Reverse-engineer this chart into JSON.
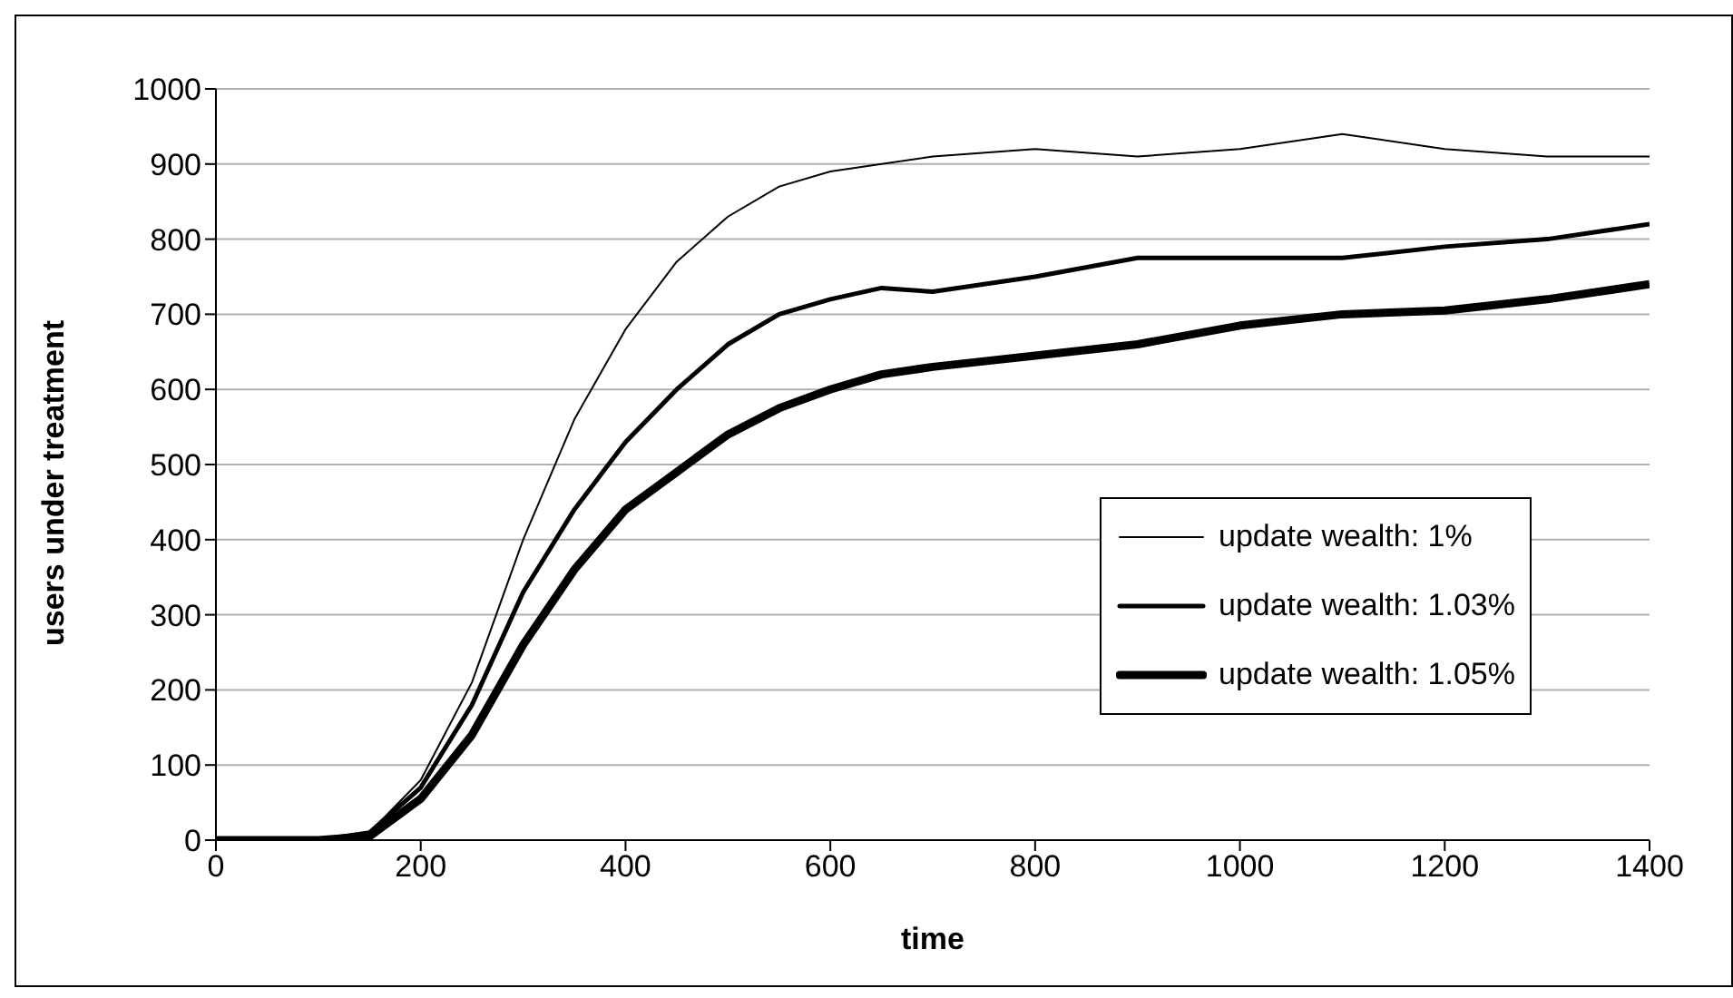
{
  "chart_data": {
    "type": "line",
    "xlabel": "time",
    "ylabel": "users under treatment",
    "x": [
      0,
      100,
      150,
      200,
      250,
      300,
      350,
      400,
      450,
      500,
      550,
      600,
      650,
      700,
      800,
      900,
      1000,
      1100,
      1200,
      1300,
      1400
    ],
    "series": [
      {
        "name": "update wealth: 1%",
        "color": "#000000",
        "values": [
          0,
          0,
          10,
          80,
          210,
          400,
          560,
          680,
          770,
          830,
          870,
          890,
          900,
          910,
          920,
          910,
          920,
          940,
          920,
          910,
          910
        ]
      },
      {
        "name": "update wealth: 1.03%",
        "color": "#000000",
        "values": [
          0,
          0,
          10,
          70,
          180,
          330,
          440,
          530,
          600,
          660,
          700,
          720,
          735,
          730,
          750,
          775,
          775,
          775,
          790,
          800,
          820
        ]
      },
      {
        "name": "update wealth: 1.05%",
        "color": "#000000",
        "values": [
          0,
          0,
          5,
          55,
          140,
          260,
          360,
          440,
          490,
          540,
          575,
          600,
          620,
          630,
          645,
          660,
          685,
          700,
          705,
          720,
          740
        ]
      }
    ],
    "xlim": [
      0,
      1400
    ],
    "xticks": [
      0,
      200,
      400,
      600,
      800,
      1000,
      1200,
      1400
    ],
    "ylim": [
      0,
      1000
    ],
    "yticks": [
      0,
      100,
      200,
      300,
      400,
      500,
      600,
      700,
      800,
      900,
      1000
    ],
    "grid": "y",
    "legend": "right",
    "marker": "none",
    "line_style": "solid"
  }
}
